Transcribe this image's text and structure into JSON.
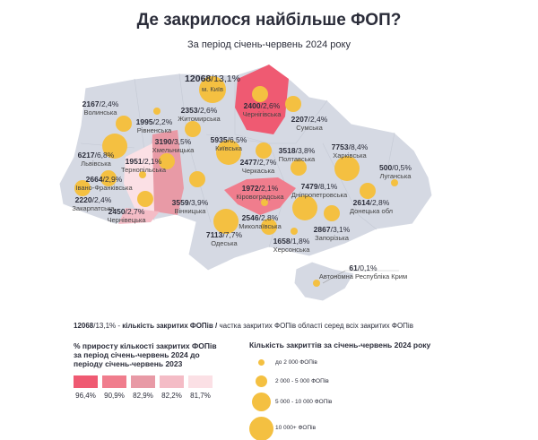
{
  "title": "Де закрилося найбільше ФОП?",
  "subtitle": "За період січень-червень 2024 року",
  "colors": {
    "land": "#d5d9e3",
    "bubble": "#f4c041",
    "c1": "#ef5a72",
    "c2": "#f07d8d",
    "c3": "#e89aa6",
    "c4": "#f4bcc6",
    "c5": "#fbe0e5"
  },
  "regions": [
    {
      "id": "kyiv-city",
      "count": "12068",
      "share": "/13,1%",
      "name": "м. Київ"
    },
    {
      "id": "chernihiv",
      "count": "2400",
      "share": "/2,6%",
      "name": "Чернігівська"
    },
    {
      "id": "sumy",
      "count": "2207",
      "share": "/2,4%",
      "name": "Сумська"
    },
    {
      "id": "volyn",
      "count": "2167",
      "share": "/2,4%",
      "name": "Волинська"
    },
    {
      "id": "rivne",
      "count": "1995",
      "share": "/2,2%",
      "name": "Рівненська"
    },
    {
      "id": "zhytomyr",
      "count": "2353",
      "share": "/2,6%",
      "name": "Житомирська"
    },
    {
      "id": "lviv",
      "count": "6217",
      "share": "/6,8%",
      "name": "Львівська"
    },
    {
      "id": "khmelnytskyi",
      "count": "3190",
      "share": "/3,5%",
      "name": "Хмельницька"
    },
    {
      "id": "ternopil",
      "count": "1951",
      "share": "/2,1%",
      "name": "Тернопільська"
    },
    {
      "id": "ivano-frankivsk",
      "count": "2664",
      "share": "/2,9%",
      "name": "Івано-Франківська"
    },
    {
      "id": "zakarpattia",
      "count": "2220",
      "share": "/2,4%",
      "name": "Закарпатська"
    },
    {
      "id": "chernivtsi",
      "count": "2450",
      "share": "/2,7%",
      "name": "Чернівецька"
    },
    {
      "id": "vinnytsia",
      "count": "3559",
      "share": "/3,9%",
      "name": "Вінницька"
    },
    {
      "id": "kyiv-oblast",
      "count": "5935",
      "share": "/6,5%",
      "name": "Київська"
    },
    {
      "id": "cherkasy",
      "count": "2477",
      "share": "/2,7%",
      "name": "Черкаська"
    },
    {
      "id": "poltava",
      "count": "3518",
      "share": "/3,8%",
      "name": "Полтавська"
    },
    {
      "id": "kirovohrad",
      "count": "1972",
      "share": "/2,1%",
      "name": "Кіровоградська"
    },
    {
      "id": "kharkiv",
      "count": "7753",
      "share": "/8,4%",
      "name": "Харківська"
    },
    {
      "id": "luhansk",
      "count": "500",
      "share": "/0,5%",
      "name": "Луганська"
    },
    {
      "id": "dnipro",
      "count": "7479",
      "share": "/8,1%",
      "name": "Дніпропетровська"
    },
    {
      "id": "donetsk",
      "count": "2614",
      "share": "/2,8%",
      "name": "Донецька обл"
    },
    {
      "id": "mykolaiv",
      "count": "2546",
      "share": "/2,8%",
      "name": "Миколаївська"
    },
    {
      "id": "zaporizhzhia",
      "count": "2867",
      "share": "/3,1%",
      "name": "Запорізька"
    },
    {
      "id": "odesa",
      "count": "7113",
      "share": "/7,7%",
      "name": "Одеська"
    },
    {
      "id": "kherson",
      "count": "1658",
      "share": "/1,8%",
      "name": "Херсонська"
    },
    {
      "id": "crimea",
      "count": "61",
      "share": "/0,1%",
      "name": "Автономна Республіка Крим"
    }
  ],
  "note": {
    "sample": "12068",
    "sample_share": "/13,1% - ",
    "bold": "кількість закритих ФОПів / ",
    "rest": "частка закритих ФОПів області серед всіх закритих ФОПів"
  },
  "legend_growth": {
    "title": "% приросту кількості закритих ФОПів за період січень-червень 2024 до періоду січень-червень 2023",
    "values": [
      "96,4%",
      "90,9%",
      "82,9%",
      "82,2%",
      "81,7%"
    ]
  },
  "legend_size": {
    "title": "Кількість закриттів за січень-червень 2024 року",
    "items": [
      "до 2 000 ФОПів",
      "2 000 - 5 000 ФОПів",
      "5 000 - 10 000 ФОПів",
      "10 000+ ФОПів"
    ]
  }
}
